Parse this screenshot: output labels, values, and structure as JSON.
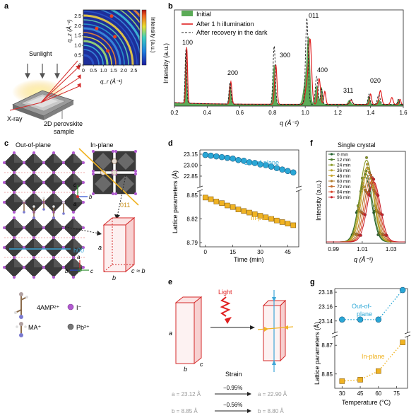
{
  "panel_labels": {
    "a": "a",
    "b": "b",
    "c": "c",
    "d": "d",
    "e": "e",
    "f": "f",
    "g": "g"
  },
  "colors": {
    "initial_fill": "#5bab57",
    "illuminated": "#e02020",
    "recovery": "#222222",
    "out_of_plane": "#2aa7d6",
    "in_plane": "#f0b323",
    "red_outline": "#d42a2a"
  },
  "panel_a": {
    "sunlight": "Sunlight",
    "xray": "X-ray",
    "sample_line1": "2D perovskite",
    "sample_line2": "sample",
    "qz_label": "q_z (Å⁻¹)",
    "qr_label": "q_r (Å⁻¹)",
    "colorbar_label": "Intensity (a.u.)",
    "qz_ticks": [
      "0",
      "0.5",
      "1.0",
      "1.5",
      "2.0",
      "2.5"
    ],
    "qr_ticks": [
      "0",
      "0.5",
      "1.0",
      "1.5",
      "2.0",
      "2.5"
    ]
  },
  "panel_b": {
    "ylabel": "Intensity (a.u.)",
    "xlabel": "q (Å⁻¹)",
    "legend": [
      "Initial",
      "After 1 h illumination",
      "After recovery in the dark"
    ],
    "peak_labels": [
      "100",
      "200",
      "300",
      "011",
      "400",
      "311",
      "020"
    ],
    "xticks": [
      "0.2",
      "0.4",
      "0.6",
      "0.8",
      "1.0",
      "1.2",
      "1.4",
      "1.6"
    ]
  },
  "panel_c": {
    "out_of_plane": "Out-of-plane",
    "in_plane": "In-plane",
    "label_011": "011",
    "label_h00": "h00",
    "axis_a": "a",
    "axis_b": "b",
    "axis_c": "c",
    "box_a": "a",
    "box_b": "b",
    "box_c": "c ≈ b",
    "legend_4amp": "4AMP²⁺",
    "legend_i": "I⁻",
    "legend_ma": "MA⁺",
    "legend_pb": "Pb²⁺"
  },
  "panel_d": {
    "ylabel": "Lattice parameters (Å)",
    "xlabel": "Time (min)",
    "series_out": "Out-of-plane",
    "series_in": "In-plane",
    "yticks_top": [
      "23.15",
      "23.00",
      "22.85"
    ],
    "yticks_bot": [
      "8.85",
      "8.82",
      "8.79"
    ],
    "xticks": [
      "0",
      "15",
      "30",
      "45"
    ]
  },
  "panel_e": {
    "light": "Light",
    "strain": "Strain",
    "strain_a": "−0.95%",
    "strain_b": "−0.56%",
    "a_before": "a = 23.12 Å",
    "a_after": "a = 22.90 Å",
    "b_before": "b = 8.85 Å",
    "b_after": "b = 8.80 Å",
    "box_a": "a",
    "box_b": "b",
    "box_c": "c"
  },
  "panel_f": {
    "title": "Single crystal",
    "ylabel": "Intensity (a.u.)",
    "xlabel": "q (Å⁻¹)",
    "legend": [
      "0 min",
      "12 min",
      "24 min",
      "36 min",
      "48 min",
      "60 min",
      "72 min",
      "84 min",
      "96 min"
    ],
    "legend_colors": [
      "#1f5f2a",
      "#4a7a2a",
      "#8a9a25",
      "#b8a12a",
      "#c9a32a",
      "#b07a2a",
      "#c46a2a",
      "#d9442a",
      "#c9202a"
    ],
    "xticks": [
      "0.99",
      "1.01",
      "1.03"
    ]
  },
  "panel_g": {
    "ylabel": "Lattice parameters (Å)",
    "xlabel": "Temperature (°C)",
    "series_out_line1": "Out-of-",
    "series_out_line2": "plane",
    "series_in": "In-plane",
    "yticks_top": [
      "23.18",
      "23.16",
      "23.14"
    ],
    "yticks_bot": [
      "8.87",
      "8.85"
    ],
    "xticks": [
      "30",
      "45",
      "60",
      "75"
    ]
  },
  "chart_data": [
    {
      "type": "line",
      "panel": "b",
      "xlabel": "q (Å⁻¹)",
      "ylabel": "Intensity (a.u.)",
      "xlim": [
        0.2,
        1.6
      ],
      "series": [
        {
          "name": "Initial",
          "peaks_q": [
            0.27,
            0.54,
            0.81,
            1.02,
            1.08,
            1.28,
            1.4,
            1.46
          ]
        },
        {
          "name": "After 1 h illumination",
          "peaks_q": [
            0.27,
            0.55,
            0.82,
            1.03,
            1.09,
            1.29,
            1.41,
            1.47
          ]
        },
        {
          "name": "After recovery in the dark",
          "peaks_q": [
            0.27,
            0.54,
            0.81,
            1.01,
            1.08,
            1.28,
            1.4,
            1.46
          ]
        }
      ]
    },
    {
      "type": "scatter",
      "panel": "d",
      "xlabel": "Time (min)",
      "ylabel": "Lattice parameters (Å)",
      "x": [
        0,
        3,
        6,
        9,
        12,
        15,
        18,
        21,
        24,
        27,
        30,
        33,
        36,
        39,
        42,
        45,
        48
      ],
      "series": [
        {
          "name": "Out-of-plane",
          "values": [
            23.14,
            23.13,
            23.12,
            23.11,
            23.1,
            23.09,
            23.07,
            23.06,
            23.04,
            23.03,
            23.01,
            23.0,
            22.98,
            22.96,
            22.94,
            22.92,
            22.9
          ]
        },
        {
          "name": "In-plane",
          "values": [
            8.847,
            8.845,
            8.842,
            8.84,
            8.837,
            8.835,
            8.832,
            8.83,
            8.828,
            8.826,
            8.824,
            8.822,
            8.82,
            8.818,
            8.816,
            8.814,
            8.812
          ]
        }
      ]
    },
    {
      "type": "line",
      "panel": "f",
      "xlabel": "q (Å⁻¹)",
      "ylabel": "Intensity (a.u.)",
      "xlim": [
        0.985,
        1.04
      ],
      "series_centers": [
        1.012,
        1.0125,
        1.013,
        1.0135,
        1.014,
        1.015,
        1.016,
        1.017,
        1.018
      ],
      "series_heights": [
        0.78,
        0.82,
        0.98,
        0.9,
        0.85,
        0.8,
        0.77,
        0.74,
        0.72
      ]
    },
    {
      "type": "line",
      "panel": "g",
      "xlabel": "Temperature (°C)",
      "ylabel": "Lattice parameters (Å)",
      "x": [
        30,
        45,
        60,
        80
      ],
      "series": [
        {
          "name": "Out-of-plane",
          "values": [
            23.142,
            23.142,
            23.142,
            23.183
          ]
        },
        {
          "name": "In-plane",
          "values": [
            8.845,
            8.846,
            8.852,
            8.872
          ]
        }
      ]
    }
  ]
}
